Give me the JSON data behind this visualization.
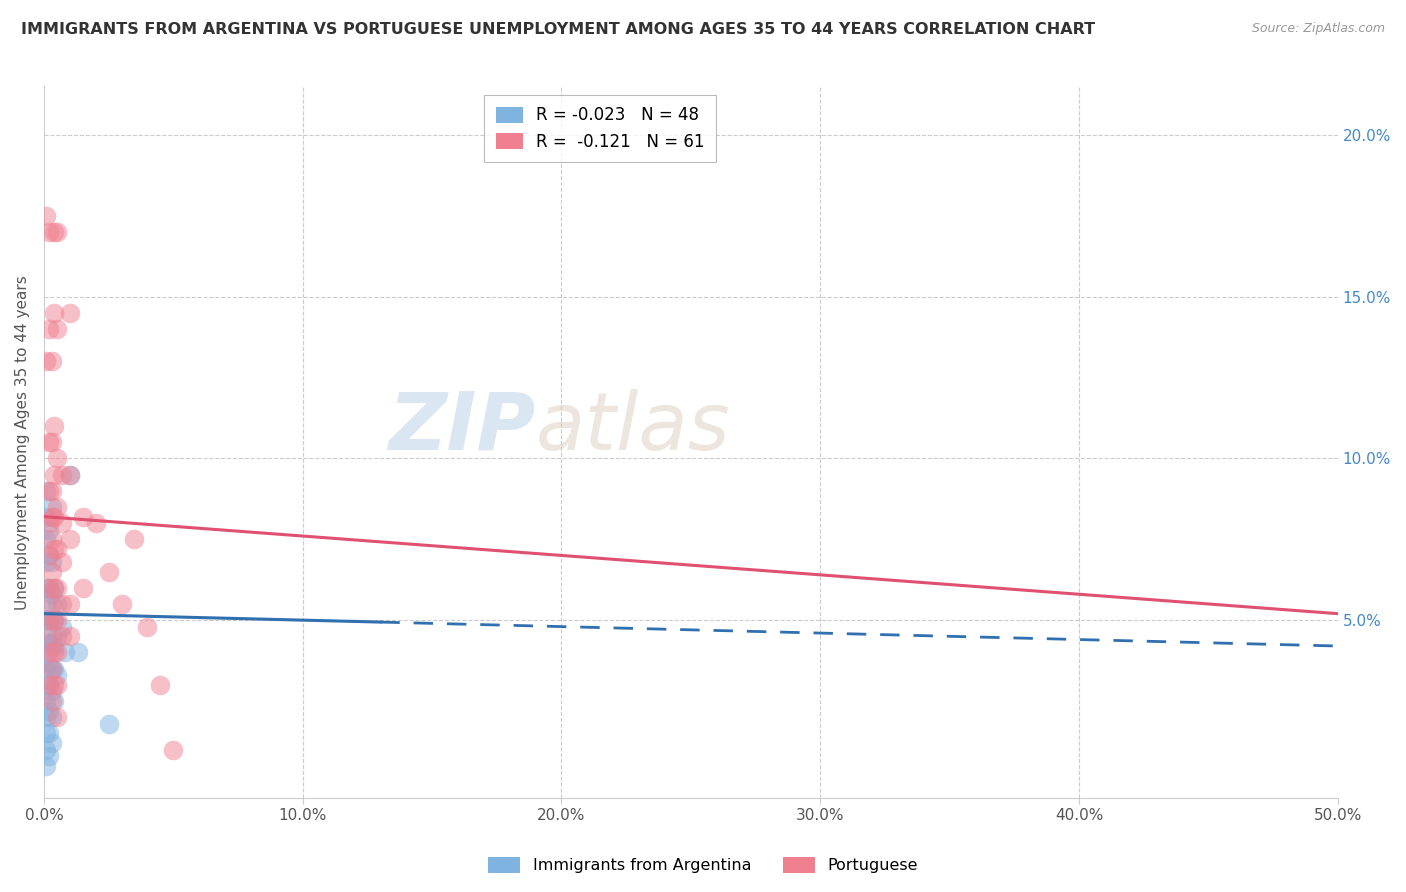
{
  "title": "IMMIGRANTS FROM ARGENTINA VS PORTUGUESE UNEMPLOYMENT AMONG AGES 35 TO 44 YEARS CORRELATION CHART",
  "source": "Source: ZipAtlas.com",
  "ylabel": "Unemployment Among Ages 35 to 44 years",
  "xlim": [
    0.0,
    0.5
  ],
  "ylim": [
    -0.005,
    0.215
  ],
  "xticks": [
    0.0,
    0.1,
    0.2,
    0.3,
    0.4,
    0.5
  ],
  "xticklabels": [
    "0.0%",
    "10.0%",
    "20.0%",
    "30.0%",
    "40.0%",
    "50.0%"
  ],
  "yticks": [
    0.05,
    0.1,
    0.15,
    0.2
  ],
  "yticklabels": [
    "5.0%",
    "10.0%",
    "15.0%",
    "20.0%"
  ],
  "watermark": "ZIPatlas",
  "argentina_color": "#7fb3e0",
  "portuguese_color": "#f08090",
  "argentina_line_color": "#3070b0",
  "portuguese_line_color": "#e05070",
  "argentina_legend": "R = -0.023   N = 48",
  "portuguese_legend": "R =  -0.121   N = 61",
  "argentina_label": "Immigrants from Argentina",
  "portuguese_label": "Portuguese",
  "argentina_points": [
    [
      0.001,
      0.09
    ],
    [
      0.001,
      0.082
    ],
    [
      0.001,
      0.075
    ],
    [
      0.001,
      0.068
    ],
    [
      0.001,
      0.06
    ],
    [
      0.001,
      0.055
    ],
    [
      0.001,
      0.05
    ],
    [
      0.001,
      0.045
    ],
    [
      0.001,
      0.04
    ],
    [
      0.001,
      0.035
    ],
    [
      0.001,
      0.03
    ],
    [
      0.001,
      0.025
    ],
    [
      0.001,
      0.02
    ],
    [
      0.001,
      0.015
    ],
    [
      0.001,
      0.01
    ],
    [
      0.001,
      0.005
    ],
    [
      0.002,
      0.078
    ],
    [
      0.002,
      0.07
    ],
    [
      0.002,
      0.06
    ],
    [
      0.002,
      0.05
    ],
    [
      0.002,
      0.043
    ],
    [
      0.002,
      0.037
    ],
    [
      0.002,
      0.03
    ],
    [
      0.002,
      0.022
    ],
    [
      0.002,
      0.015
    ],
    [
      0.002,
      0.008
    ],
    [
      0.003,
      0.085
    ],
    [
      0.003,
      0.068
    ],
    [
      0.003,
      0.058
    ],
    [
      0.003,
      0.05
    ],
    [
      0.003,
      0.043
    ],
    [
      0.003,
      0.035
    ],
    [
      0.003,
      0.028
    ],
    [
      0.003,
      0.02
    ],
    [
      0.003,
      0.012
    ],
    [
      0.004,
      0.06
    ],
    [
      0.004,
      0.05
    ],
    [
      0.004,
      0.042
    ],
    [
      0.004,
      0.035
    ],
    [
      0.004,
      0.025
    ],
    [
      0.005,
      0.055
    ],
    [
      0.005,
      0.045
    ],
    [
      0.005,
      0.033
    ],
    [
      0.007,
      0.048
    ],
    [
      0.008,
      0.04
    ],
    [
      0.01,
      0.095
    ],
    [
      0.013,
      0.04
    ],
    [
      0.025,
      0.018
    ]
  ],
  "portuguese_points": [
    [
      0.001,
      0.175
    ],
    [
      0.001,
      0.13
    ],
    [
      0.002,
      0.17
    ],
    [
      0.002,
      0.14
    ],
    [
      0.002,
      0.105
    ],
    [
      0.002,
      0.09
    ],
    [
      0.002,
      0.08
    ],
    [
      0.002,
      0.07
    ],
    [
      0.002,
      0.06
    ],
    [
      0.002,
      0.05
    ],
    [
      0.002,
      0.04
    ],
    [
      0.002,
      0.03
    ],
    [
      0.003,
      0.13
    ],
    [
      0.003,
      0.105
    ],
    [
      0.003,
      0.09
    ],
    [
      0.003,
      0.082
    ],
    [
      0.003,
      0.075
    ],
    [
      0.003,
      0.065
    ],
    [
      0.003,
      0.055
    ],
    [
      0.003,
      0.045
    ],
    [
      0.003,
      0.035
    ],
    [
      0.003,
      0.025
    ],
    [
      0.004,
      0.17
    ],
    [
      0.004,
      0.145
    ],
    [
      0.004,
      0.11
    ],
    [
      0.004,
      0.095
    ],
    [
      0.004,
      0.082
    ],
    [
      0.004,
      0.072
    ],
    [
      0.004,
      0.06
    ],
    [
      0.004,
      0.05
    ],
    [
      0.004,
      0.04
    ],
    [
      0.004,
      0.03
    ],
    [
      0.005,
      0.17
    ],
    [
      0.005,
      0.14
    ],
    [
      0.005,
      0.1
    ],
    [
      0.005,
      0.085
    ],
    [
      0.005,
      0.072
    ],
    [
      0.005,
      0.06
    ],
    [
      0.005,
      0.05
    ],
    [
      0.005,
      0.04
    ],
    [
      0.005,
      0.03
    ],
    [
      0.005,
      0.02
    ],
    [
      0.007,
      0.095
    ],
    [
      0.007,
      0.08
    ],
    [
      0.007,
      0.068
    ],
    [
      0.007,
      0.055
    ],
    [
      0.007,
      0.045
    ],
    [
      0.01,
      0.145
    ],
    [
      0.01,
      0.095
    ],
    [
      0.01,
      0.075
    ],
    [
      0.01,
      0.055
    ],
    [
      0.01,
      0.045
    ],
    [
      0.015,
      0.082
    ],
    [
      0.015,
      0.06
    ],
    [
      0.02,
      0.08
    ],
    [
      0.025,
      0.065
    ],
    [
      0.03,
      0.055
    ],
    [
      0.035,
      0.075
    ],
    [
      0.04,
      0.048
    ],
    [
      0.045,
      0.03
    ],
    [
      0.05,
      0.01
    ]
  ],
  "argentina_trend": [
    0.0,
    0.5,
    0.052,
    0.042
  ],
  "portuguese_trend": [
    0.0,
    0.5,
    0.082,
    0.052
  ]
}
